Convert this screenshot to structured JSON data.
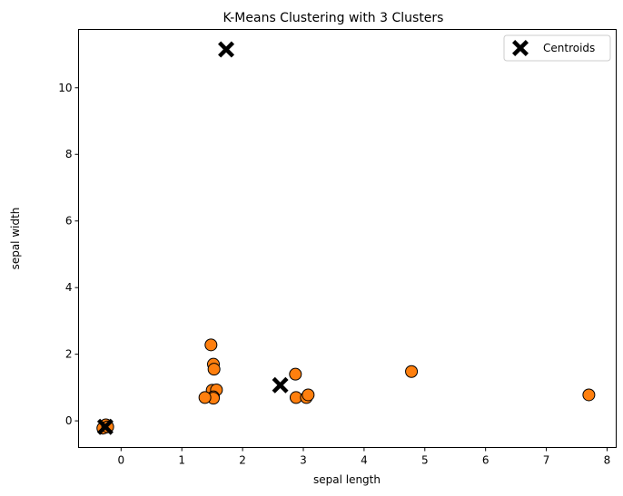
{
  "chart_data": {
    "type": "scatter",
    "title": "K-Means Clustering with 3 Clusters",
    "xlabel": "sepal length",
    "ylabel": "sepal width",
    "xlim": [
      -0.7,
      8.15
    ],
    "ylim": [
      -0.8,
      11.75
    ],
    "xticks": [
      0,
      1,
      2,
      3,
      4,
      5,
      6,
      7,
      8
    ],
    "yticks": [
      0,
      2,
      4,
      6,
      8,
      10
    ],
    "grid": false,
    "legend_position": "top-right",
    "series": [
      {
        "kind": "points",
        "color": "#ff7f0e",
        "points": [
          [
            -0.27,
            -0.2
          ],
          [
            -0.25,
            -0.12
          ],
          [
            -0.3,
            -0.22
          ],
          [
            -0.22,
            -0.18
          ],
          [
            1.48,
            2.28
          ],
          [
            1.52,
            1.7
          ],
          [
            1.53,
            1.55
          ],
          [
            1.5,
            0.92
          ],
          [
            1.57,
            0.93
          ],
          [
            1.52,
            0.72
          ],
          [
            1.52,
            0.68
          ],
          [
            1.38,
            0.7
          ],
          [
            2.87,
            1.4
          ],
          [
            2.88,
            0.7
          ],
          [
            3.05,
            0.7
          ],
          [
            3.08,
            0.78
          ],
          [
            4.78,
            1.48
          ],
          [
            7.7,
            0.78
          ]
        ]
      },
      {
        "name": "Centroids",
        "kind": "centroids",
        "color": "#000000",
        "points": [
          [
            1.73,
            11.15
          ],
          [
            2.62,
            1.07
          ],
          [
            -0.26,
            -0.18
          ]
        ]
      }
    ]
  }
}
